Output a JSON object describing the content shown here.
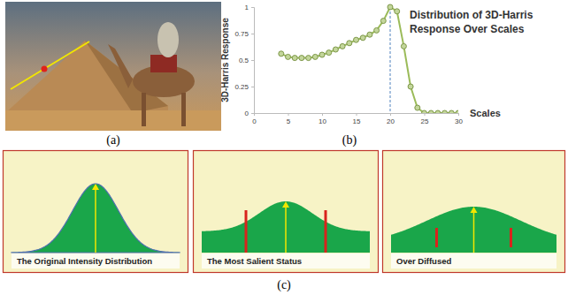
{
  "chart_data": {
    "type": "line",
    "title": "Distribution of 3D-Harris Response Over Scales",
    "x_label": "Scales",
    "y_label": "3D-Harris Response",
    "x": [
      4,
      5,
      6,
      7,
      8,
      9,
      10,
      11,
      12,
      13,
      14,
      15,
      16,
      17,
      18,
      19,
      20,
      21,
      22,
      23,
      24,
      25,
      26,
      27,
      28,
      29,
      30
    ],
    "values": [
      0.56,
      0.53,
      0.52,
      0.52,
      0.52,
      0.53,
      0.55,
      0.57,
      0.6,
      0.63,
      0.66,
      0.69,
      0.71,
      0.74,
      0.78,
      0.87,
      1.0,
      0.96,
      0.63,
      0.25,
      0.05,
      0,
      0,
      0,
      0,
      0,
      0
    ],
    "xlim": [
      0,
      30
    ],
    "xticks": [
      0,
      5,
      10,
      15,
      20,
      25,
      30
    ],
    "ylim": [
      0,
      1
    ],
    "yticks": [
      0,
      0.25,
      0.5,
      0.75,
      1
    ],
    "color": "#9bbb59",
    "marker": "circle",
    "grid": false
  },
  "figure": {
    "panels": [
      {
        "label": "(a)"
      },
      {
        "label": "(b)"
      },
      {
        "label": "(c)"
      }
    ],
    "diagrams": [
      {
        "caption": "The Original Intensity Distribution"
      },
      {
        "caption": "The Most Salient Status"
      },
      {
        "caption": "Over Diffused"
      }
    ]
  }
}
